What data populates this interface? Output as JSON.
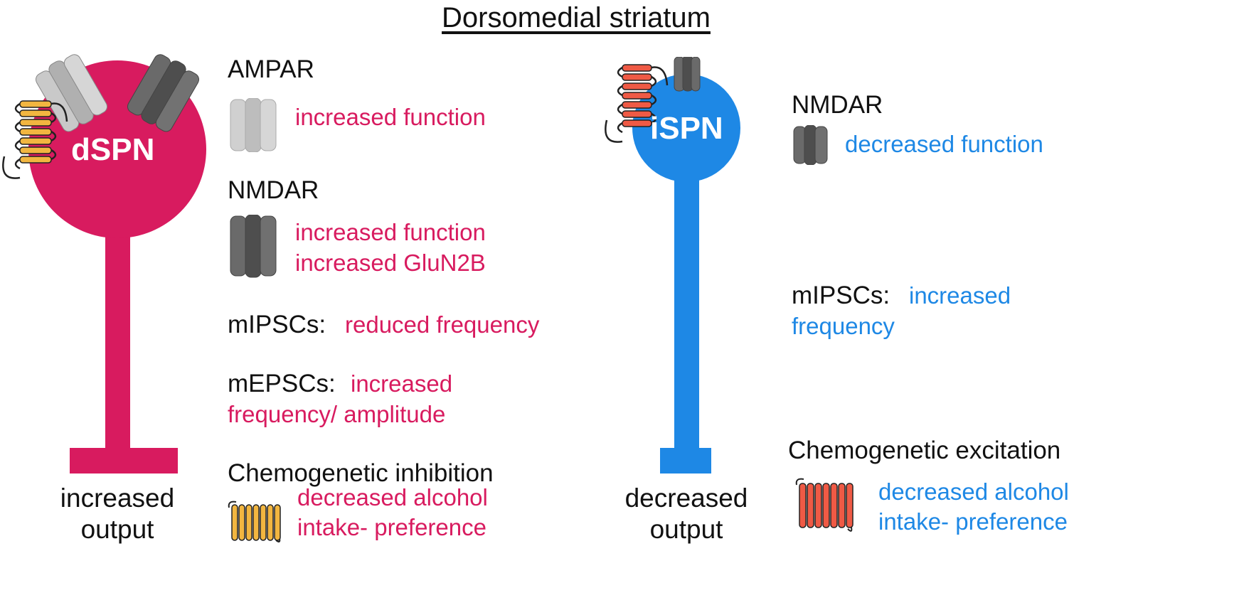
{
  "title": "Dorsomedial striatum",
  "colors": {
    "dspn": "#d81b5f",
    "ispn": "#1e88e5",
    "ampar": "#c4c4c4",
    "nmdar": "#5a5a5a",
    "gpcr_inhibitory": "#f2b640",
    "gpcr_excitatory": "#ef5a45"
  },
  "dspn": {
    "label": "dSPN",
    "output": [
      "increased",
      "output"
    ],
    "ampar": {
      "title": "AMPAR",
      "effects": [
        "increased function"
      ]
    },
    "nmdar": {
      "title": "NMDAR",
      "effects": [
        "increased function",
        "increased GluN2B"
      ]
    },
    "mipscs": {
      "title": "mIPSCs:",
      "effect": "reduced frequency"
    },
    "mepscs": {
      "title": "mEPSCs:",
      "effect": [
        "increased",
        "frequency/ amplitude"
      ]
    },
    "chemo": {
      "title": "Chemogenetic inhibition",
      "effects": [
        "decreased alcohol",
        "intake- preference"
      ]
    }
  },
  "ispn": {
    "label": "iSPN",
    "output": [
      "decreased",
      "output"
    ],
    "nmdar": {
      "title": "NMDAR",
      "effects": [
        "decreased function"
      ]
    },
    "mipscs": {
      "title": "mIPSCs:",
      "effect": [
        "increased",
        "frequency"
      ]
    },
    "chemo": {
      "title": "Chemogenetic excitation",
      "effects": [
        "decreased alcohol",
        "intake- preference"
      ]
    }
  }
}
